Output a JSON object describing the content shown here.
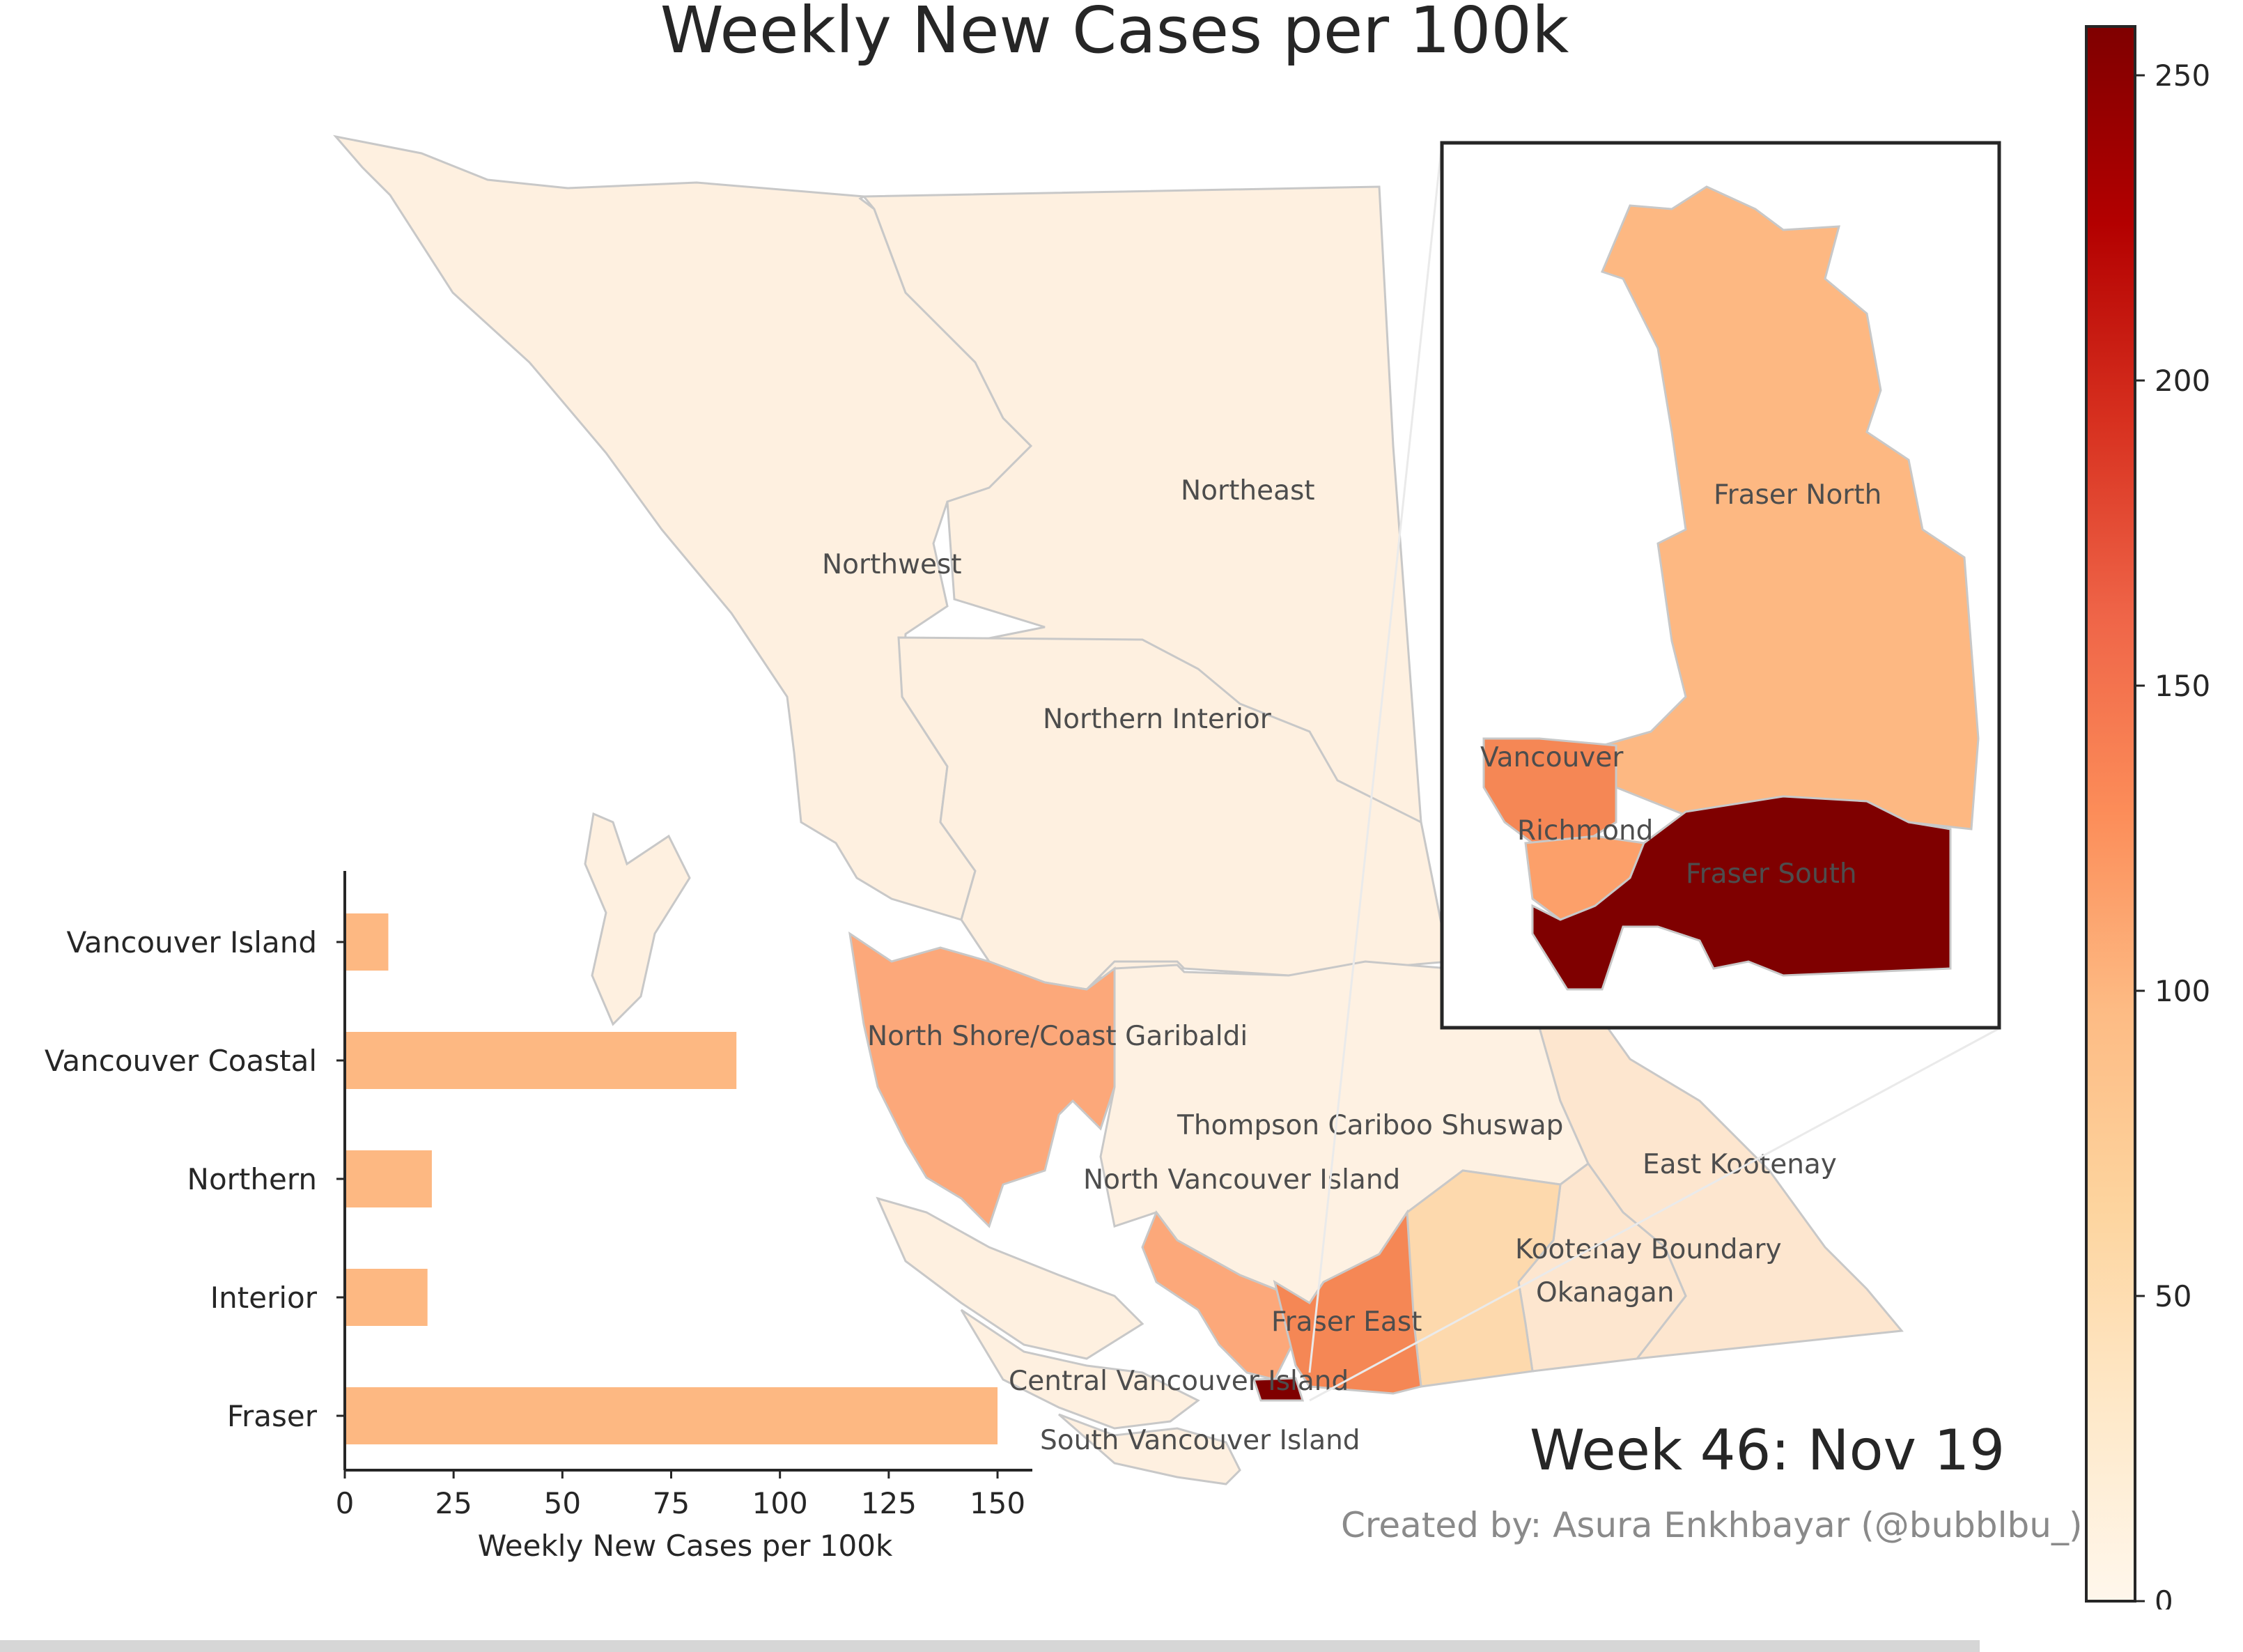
{
  "title": "Weekly New Cases per 100k",
  "week_label": "Week 46: Nov 19",
  "credit": "Created by: Asura Enkhbayar (@bubblbu_)",
  "colors": {
    "lightest": "#fff5eb",
    "light": "#fde9d4",
    "pale": "#fdd9ad",
    "mid": "#fdb882",
    "orange": "#fca06a",
    "darkorange": "#f58755",
    "deep": "#7f0000",
    "bar": "#fdb882"
  },
  "map": {
    "regions": [
      {
        "name": "Northeast"
      },
      {
        "name": "Northwest"
      },
      {
        "name": "Northern Interior"
      },
      {
        "name": "North Shore/Coast Garibaldi"
      },
      {
        "name": "Thompson Cariboo Shuswap"
      },
      {
        "name": "North Vancouver Island"
      },
      {
        "name": "East Kootenay"
      },
      {
        "name": "Kootenay Boundary"
      },
      {
        "name": "Okanagan"
      },
      {
        "name": "Fraser East"
      },
      {
        "name": "Central Vancouver Island"
      },
      {
        "name": "South Vancouver Island"
      }
    ],
    "inset_regions": [
      {
        "name": "Fraser North"
      },
      {
        "name": "Vancouver"
      },
      {
        "name": "Richmond"
      },
      {
        "name": "Fraser South"
      }
    ]
  },
  "chart_data": [
    {
      "type": "bar",
      "orientation": "horizontal",
      "categories": [
        "Vancouver Island",
        "Vancouver Coastal",
        "Northern",
        "Interior",
        "Fraser"
      ],
      "values": [
        10,
        90,
        20,
        19,
        150
      ],
      "xlabel": "Weekly New Cases per 100k",
      "xticks": [
        0,
        25,
        50,
        75,
        100,
        125,
        150
      ],
      "xlim": [
        0,
        158
      ]
    },
    {
      "type": "heatmap",
      "role": "colorbar",
      "range": [
        0,
        258
      ],
      "ticks": [
        0,
        50,
        100,
        150,
        200,
        250
      ],
      "colormap": "OrRd"
    }
  ]
}
